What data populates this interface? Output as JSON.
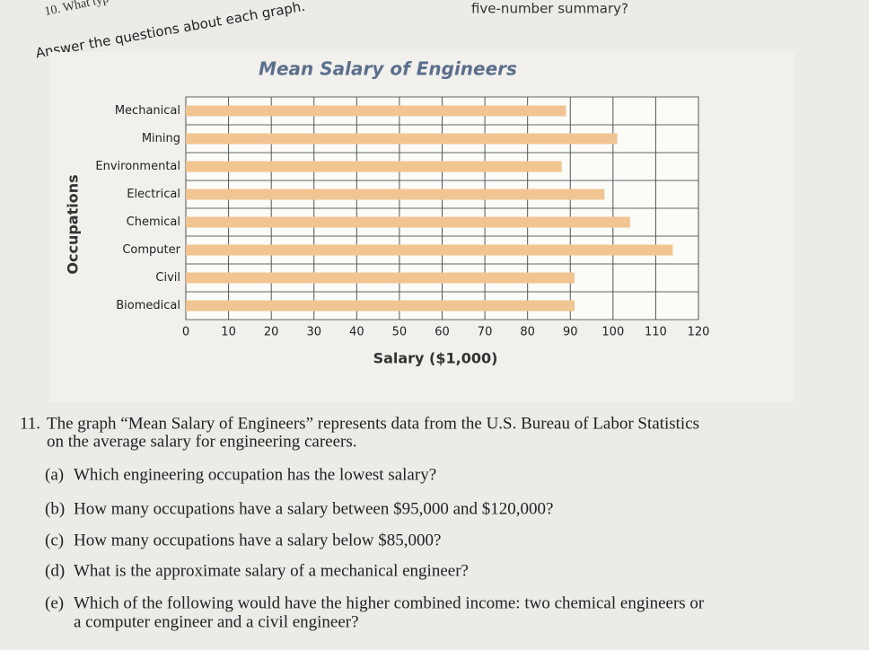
{
  "page": {
    "prev_question": "10. What typ",
    "prev_question_tail": "five-number summary?",
    "instruction": "Answer the questions about each graph.",
    "question": {
      "number": "11.",
      "text": "The graph “Mean Salary of Engineers” represents data from the U.S. Bureau of Labor Statistics",
      "text_cont": "on the average salary for engineering careers.",
      "items": [
        {
          "label": "(a)",
          "text": "Which engineering occupation has the lowest salary?"
        },
        {
          "label": "(b)",
          "text": "How many occupations have a salary between $95,000 and $120,000?"
        },
        {
          "label": "(c)",
          "text": "How many occupations have a salary below $85,000?"
        },
        {
          "label": "(d)",
          "text": "What is the approximate salary of a mechanical engineer?"
        },
        {
          "label": "(e)",
          "text": "Which of the following would have the higher combined income: two chemical engineers or",
          "text_cont": "a computer engineer and a civil engineer?"
        }
      ]
    }
  },
  "chart_data": {
    "type": "bar",
    "orientation": "horizontal",
    "title": "Mean Salary of Engineers",
    "xlabel": "Salary ($1,000)",
    "ylabel": "Occupations",
    "categories": [
      "Mechanical",
      "Mining",
      "Environmental",
      "Electrical",
      "Chemical",
      "Computer",
      "Civil",
      "Biomedical"
    ],
    "values": [
      89,
      101,
      88,
      98,
      104,
      114,
      91,
      91
    ],
    "color": "#f1c591",
    "xlim": [
      0,
      120
    ],
    "xticks": [
      0,
      10,
      20,
      30,
      40,
      50,
      60,
      70,
      80,
      90,
      100,
      110,
      120
    ],
    "grid": true
  }
}
